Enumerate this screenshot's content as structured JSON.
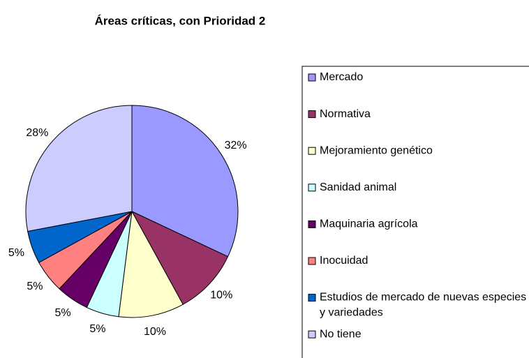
{
  "chart_data": {
    "type": "pie",
    "title": "Áreas críticas, con Prioridad 2",
    "categories": [
      "Mercado",
      "Normativa",
      "Mejoramiento genético",
      "Sanidad animal",
      "Maquinaria agrícola",
      "Inocuidad",
      "Estudios de mercado de nuevas especies y variedades",
      "No tiene"
    ],
    "values": [
      32,
      10,
      10,
      5,
      5,
      5,
      5,
      28
    ],
    "value_labels": [
      "32%",
      "10%",
      "10%",
      "5%",
      "5%",
      "5%",
      "5%",
      "28%"
    ],
    "colors": [
      "#9999ff",
      "#993366",
      "#ffffcc",
      "#ccffff",
      "#660066",
      "#ff8080",
      "#0066cc",
      "#ccccff"
    ],
    "legend": "right"
  }
}
